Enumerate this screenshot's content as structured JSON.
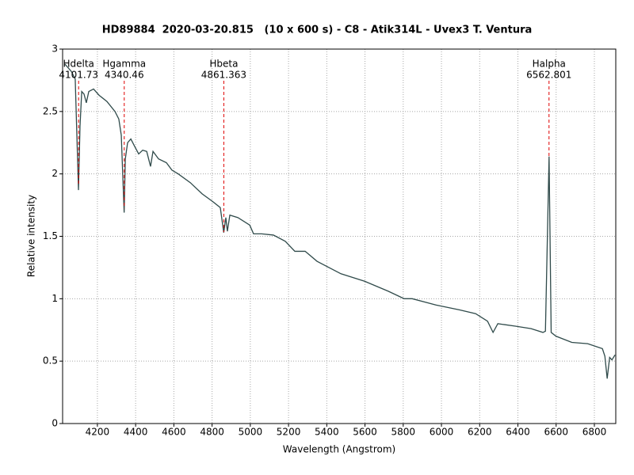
{
  "chart_data": {
    "type": "line",
    "title": "HD89884  2020-03-20.815   (10 x 600 s) - C8 - Atik314L - Uvex3 T. Ventura",
    "x_label": "Wavelength (Angstrom)",
    "y_label": "Relative intensity",
    "xlim": [
      4018,
      6912
    ],
    "ylim": [
      0,
      3
    ],
    "xticks": [
      4200,
      4400,
      4600,
      4800,
      5000,
      5200,
      5400,
      5600,
      5800,
      6000,
      6200,
      6400,
      6600,
      6800
    ],
    "yticks": [
      0,
      0.5,
      1,
      1.5,
      2,
      2.5,
      3
    ],
    "grid": true,
    "series": [
      {
        "color": "#2f4a4a",
        "x": [
          4030,
          4064,
          4084,
          4101,
          4109,
          4118,
          4130,
          4142,
          4155,
          4180,
          4209,
          4250,
          4292,
          4312,
          4325,
          4340,
          4346,
          4358,
          4375,
          4395,
          4416,
          4437,
          4458,
          4478,
          4491,
          4520,
          4561,
          4590,
          4623,
          4686,
          4748,
          4802,
          4843,
          4861,
          4872,
          4880,
          4893,
          4935,
          4997,
          5017,
          5059,
          5121,
          5183,
          5233,
          5287,
          5349,
          5474,
          5598,
          5722,
          5805,
          5847,
          5971,
          6096,
          6179,
          6241,
          6270,
          6295,
          6387,
          6469,
          6531,
          6544,
          6563,
          6574,
          6599,
          6682,
          6765,
          6842,
          6855,
          6867,
          6880,
          6892,
          6908
        ],
        "values": [
          2.88,
          2.82,
          2.76,
          1.87,
          2.38,
          2.66,
          2.64,
          2.57,
          2.66,
          2.68,
          2.63,
          2.58,
          2.5,
          2.44,
          2.31,
          1.69,
          2.12,
          2.25,
          2.28,
          2.22,
          2.16,
          2.19,
          2.18,
          2.06,
          2.18,
          2.12,
          2.09,
          2.03,
          2.0,
          1.93,
          1.84,
          1.78,
          1.73,
          1.53,
          1.65,
          1.54,
          1.67,
          1.65,
          1.59,
          1.52,
          1.52,
          1.51,
          1.46,
          1.38,
          1.38,
          1.3,
          1.2,
          1.14,
          1.06,
          1.0,
          1.0,
          0.95,
          0.91,
          0.88,
          0.82,
          0.73,
          0.8,
          0.78,
          0.76,
          0.73,
          0.74,
          2.14,
          0.73,
          0.7,
          0.65,
          0.64,
          0.6,
          0.54,
          0.36,
          0.53,
          0.51,
          0.55
        ]
      }
    ],
    "annotations": [
      {
        "label": "Hdelta",
        "x": 4101.73
      },
      {
        "label": "Hgamma",
        "x": 4340.46
      },
      {
        "label": "Hbeta",
        "x": 4861.363
      },
      {
        "label": "Halpha",
        "x": 6562.801
      }
    ],
    "annotation_color": "#e00000"
  }
}
